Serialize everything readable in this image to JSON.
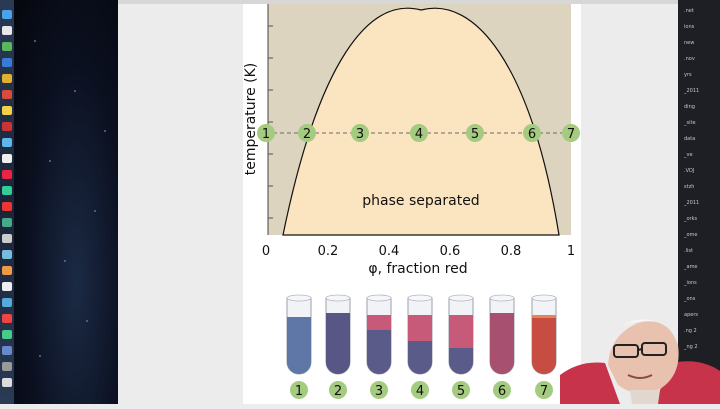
{
  "slide": {
    "y_axis_label": "temperature (K)",
    "x_axis_label": "φ, fraction red",
    "x_ticks": [
      "0",
      "0.2",
      "0.4",
      "0.6",
      "0.8",
      "1"
    ],
    "region_label": "phase separated",
    "marker_labels": [
      "1",
      "2",
      "3",
      "4",
      "5",
      "6",
      "7"
    ],
    "tube_labels": [
      "1",
      "2",
      "3",
      "4",
      "5",
      "6",
      "7"
    ],
    "colors": {
      "outside_region": "#ddd4c0",
      "inside_region": "#fbe5c0",
      "marker_fill": "#a4cb7f",
      "blue_liquid": "#5f77a6",
      "red_liquid": "#c74d43",
      "mixed_liquid": "#9e5075"
    }
  },
  "right_panel_lines": [
    ".net",
    "ions",
    "new",
    ".nov",
    "yrs",
    "_2011",
    "ding",
    "_site",
    "data",
    "_ve",
    ".VDJ",
    "stzh",
    "_2011",
    "_orks",
    "_ome",
    ".list",
    "_ame",
    "_ions",
    "_ons",
    "apers",
    ".ng 2",
    "_ng 2"
  ]
}
